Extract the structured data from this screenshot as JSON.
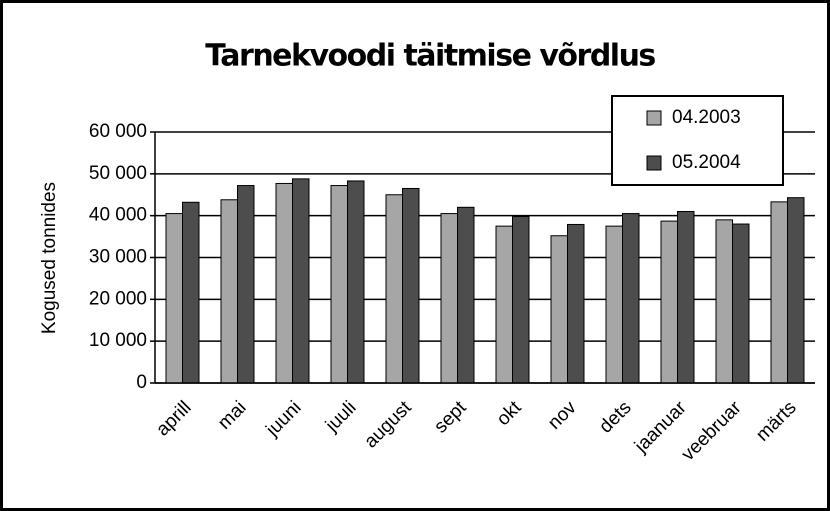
{
  "chart_data": {
    "type": "bar",
    "title": "Tarnekvoodi täitmise võrdlus",
    "ylabel": "Kogused tonnides",
    "categories": [
      "aprill",
      "mai",
      "juuni",
      "juuli",
      "august",
      "sept",
      "okt",
      "nov",
      "dets",
      "jaanuar",
      "veebruar",
      "märts"
    ],
    "series": [
      {
        "name": "04.2003",
        "color": "#a6a6a6",
        "values": [
          40500,
          43800,
          47700,
          47200,
          45000,
          40500,
          37500,
          35200,
          37500,
          38700,
          39000,
          43300
        ]
      },
      {
        "name": "05.2004",
        "color": "#4d4d4d",
        "values": [
          43200,
          47200,
          48800,
          48300,
          46500,
          42000,
          39800,
          37900,
          40500,
          41000,
          38000,
          44300
        ]
      }
    ],
    "ylim": [
      0,
      60000
    ],
    "yticks": [
      0,
      {
        "value": 10000,
        "label": "10 000"
      },
      {
        "value": 20000,
        "label": "20 000"
      },
      {
        "value": 30000,
        "label": "30 000"
      },
      {
        "value": 40000,
        "label": "40 000"
      },
      {
        "value": 50000,
        "label": "50 000"
      },
      {
        "value": 60000,
        "label": "60 000"
      }
    ],
    "grid": true,
    "legend": "upper right"
  }
}
